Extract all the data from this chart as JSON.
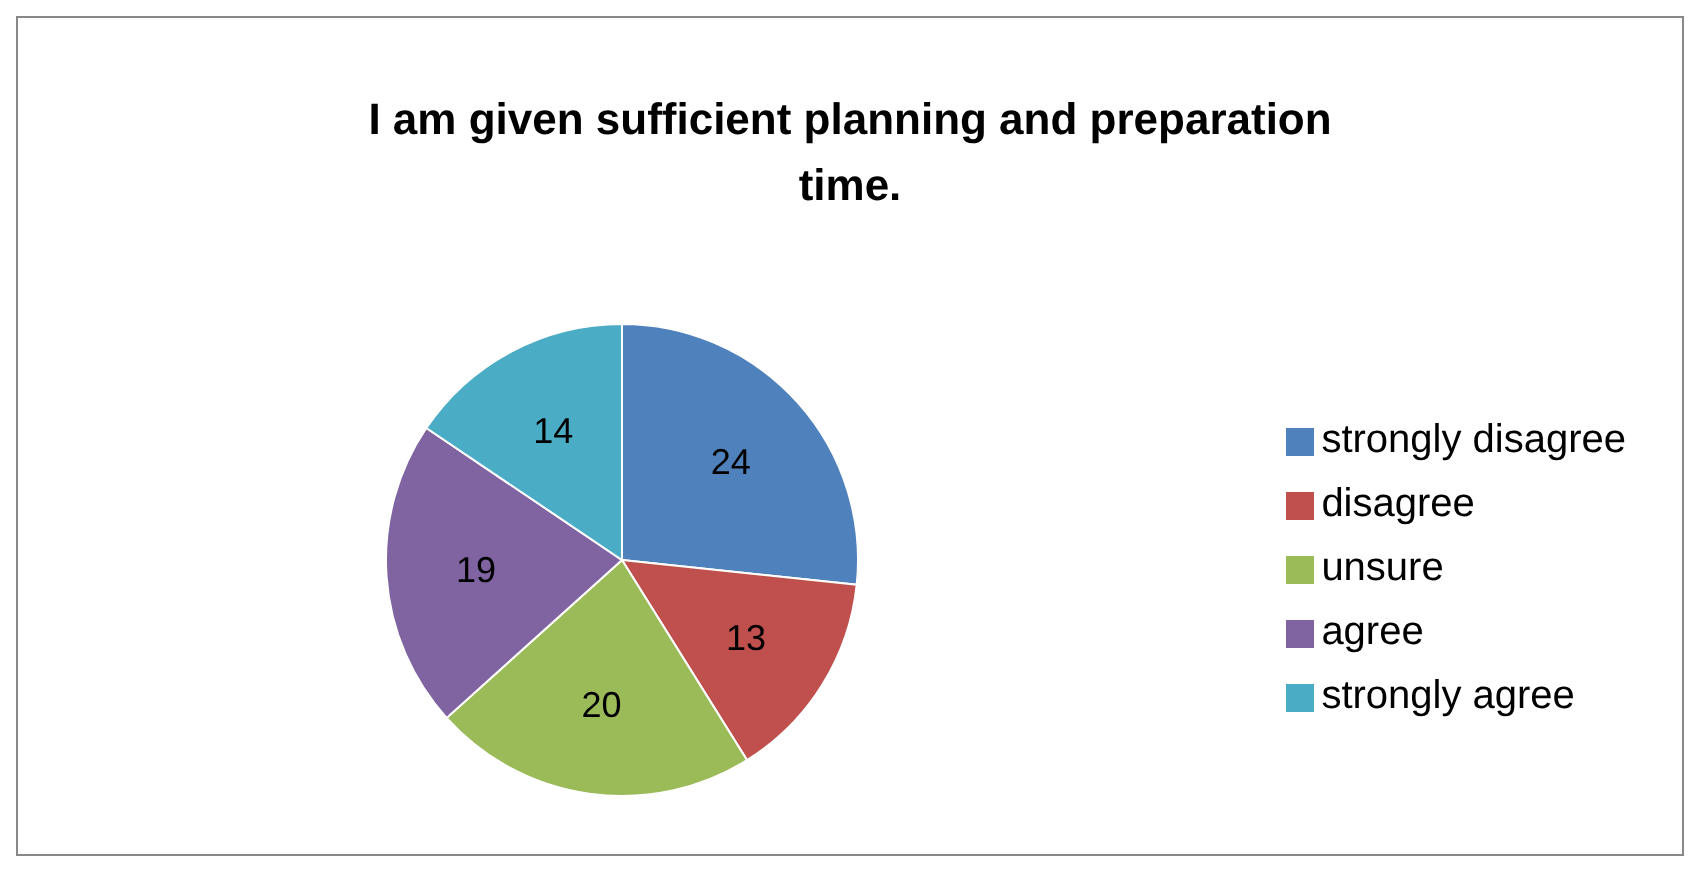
{
  "chart_data": {
    "type": "pie",
    "title": "I am given sufficient planning and preparation time.",
    "categories": [
      "strongly disagree",
      "disagree",
      "unsure",
      "agree",
      "strongly agree"
    ],
    "values": [
      24,
      13,
      20,
      19,
      14
    ],
    "colors": [
      "#4f81bd",
      "#c0504d",
      "#9bbb59",
      "#8064a2",
      "#4bacc6"
    ],
    "data_labels": true,
    "legend": "right"
  }
}
